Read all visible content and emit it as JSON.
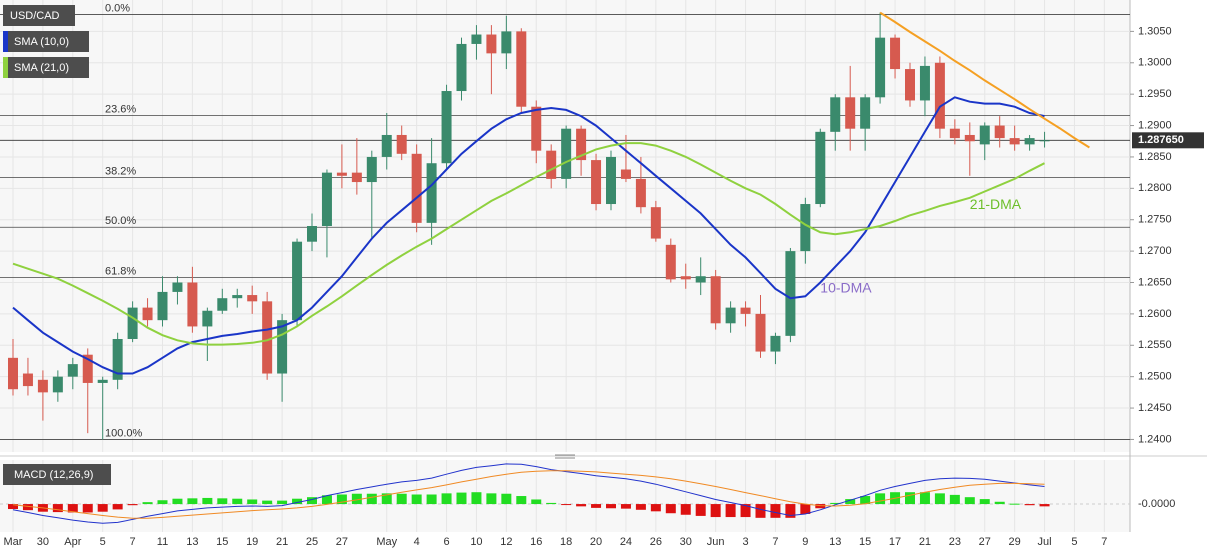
{
  "chart_data": {
    "type": "candlestick",
    "title": "USD/CAD",
    "categories": [
      "Mar",
      null,
      "30",
      null,
      "Apr",
      null,
      "5",
      null,
      "7",
      null,
      "11",
      null,
      "13",
      null,
      "15",
      null,
      "19",
      null,
      "21",
      null,
      "25",
      null,
      "27",
      null,
      null,
      "May",
      null,
      "4",
      null,
      "6",
      null,
      "10",
      null,
      "12",
      null,
      "16",
      null,
      "18",
      null,
      "20",
      null,
      "24",
      null,
      "26",
      null,
      "30",
      null,
      "Jun",
      null,
      "3",
      null,
      "7",
      null,
      "9",
      null,
      "13",
      null,
      "15",
      null,
      "17",
      null,
      "21",
      null,
      "23",
      null,
      "27",
      null,
      "29",
      null,
      "Jul",
      null,
      "5",
      null,
      "7"
    ],
    "ohlc": [
      [
        1.253,
        1.256,
        1.247,
        1.248
      ],
      [
        1.2505,
        1.253,
        1.247,
        1.2485
      ],
      [
        1.2495,
        1.251,
        1.243,
        1.2475
      ],
      [
        1.2475,
        1.251,
        1.246,
        1.25
      ],
      [
        1.25,
        1.253,
        1.248,
        1.252
      ],
      [
        1.2535,
        1.2545,
        1.241,
        1.249
      ],
      [
        1.249,
        1.25,
        1.24,
        1.2495
      ],
      [
        1.2495,
        1.257,
        1.248,
        1.256
      ],
      [
        1.256,
        1.262,
        1.2555,
        1.261
      ],
      [
        1.261,
        1.2625,
        1.258,
        1.259
      ],
      [
        1.259,
        1.266,
        1.258,
        1.2635
      ],
      [
        1.2635,
        1.266,
        1.2615,
        1.265
      ],
      [
        1.265,
        1.2675,
        1.257,
        1.258
      ],
      [
        1.258,
        1.261,
        1.2525,
        1.2605
      ],
      [
        1.2605,
        1.264,
        1.26,
        1.2625
      ],
      [
        1.2625,
        1.264,
        1.261,
        1.263
      ],
      [
        1.263,
        1.2645,
        1.26,
        1.262
      ],
      [
        1.262,
        1.2635,
        1.2495,
        1.2505
      ],
      [
        1.2505,
        1.26,
        1.246,
        1.259
      ],
      [
        1.259,
        1.272,
        1.258,
        1.2715
      ],
      [
        1.2715,
        1.276,
        1.27,
        1.274
      ],
      [
        1.274,
        1.283,
        1.269,
        1.2825
      ],
      [
        1.2825,
        1.287,
        1.28,
        1.282
      ],
      [
        1.2825,
        1.288,
        1.279,
        1.281
      ],
      [
        1.281,
        1.286,
        1.272,
        1.285
      ],
      [
        1.285,
        1.292,
        1.283,
        1.2885
      ],
      [
        1.2885,
        1.29,
        1.2845,
        1.2855
      ],
      [
        1.2855,
        1.287,
        1.273,
        1.2745
      ],
      [
        1.2745,
        1.288,
        1.271,
        1.284
      ],
      [
        1.284,
        1.2965,
        1.283,
        1.2955
      ],
      [
        1.2955,
        1.304,
        1.294,
        1.303
      ],
      [
        1.303,
        1.306,
        1.3005,
        1.3045
      ],
      [
        1.3045,
        1.306,
        1.295,
        1.3015
      ],
      [
        1.3015,
        1.3075,
        1.299,
        1.305
      ],
      [
        1.305,
        1.3055,
        1.292,
        1.293
      ],
      [
        1.293,
        1.294,
        1.284,
        1.286
      ],
      [
        1.286,
        1.287,
        1.28,
        1.2815
      ],
      [
        1.2815,
        1.29,
        1.28,
        1.2895
      ],
      [
        1.2895,
        1.29,
        1.282,
        1.2845
      ],
      [
        1.2845,
        1.2855,
        1.2765,
        1.2775
      ],
      [
        1.2775,
        1.286,
        1.2765,
        1.285
      ],
      [
        1.283,
        1.2885,
        1.281,
        1.2815
      ],
      [
        1.2815,
        1.285,
        1.276,
        1.277
      ],
      [
        1.277,
        1.278,
        1.2715,
        1.272
      ],
      [
        1.271,
        1.272,
        1.265,
        1.2655
      ],
      [
        1.266,
        1.268,
        1.264,
        1.2655
      ],
      [
        1.265,
        1.269,
        1.263,
        1.266
      ],
      [
        1.266,
        1.267,
        1.2575,
        1.2585
      ],
      [
        1.2585,
        1.262,
        1.257,
        1.261
      ],
      [
        1.261,
        1.262,
        1.258,
        1.26
      ],
      [
        1.26,
        1.263,
        1.253,
        1.254
      ],
      [
        1.254,
        1.257,
        1.252,
        1.2565
      ],
      [
        1.2565,
        1.2705,
        1.2555,
        1.27
      ],
      [
        1.27,
        1.2785,
        1.268,
        1.2775
      ],
      [
        1.2775,
        1.2895,
        1.277,
        1.289
      ],
      [
        1.289,
        1.295,
        1.286,
        1.2945
      ],
      [
        1.2945,
        1.2995,
        1.286,
        1.2895
      ],
      [
        1.2895,
        1.295,
        1.286,
        1.2945
      ],
      [
        1.2945,
        1.308,
        1.2935,
        1.304
      ],
      [
        1.304,
        1.3045,
        1.2975,
        1.299
      ],
      [
        1.299,
        1.3,
        1.293,
        1.294
      ],
      [
        1.294,
        1.301,
        1.2915,
        1.2995
      ],
      [
        1.3,
        1.301,
        1.288,
        1.2895
      ],
      [
        1.2895,
        1.291,
        1.287,
        1.288
      ],
      [
        1.2885,
        1.2905,
        1.282,
        1.2875
      ],
      [
        1.287,
        1.2905,
        1.2845,
        1.29
      ],
      [
        1.29,
        1.2915,
        1.2865,
        1.288
      ],
      [
        1.288,
        1.29,
        1.286,
        1.287
      ],
      [
        1.287,
        1.2885,
        1.286,
        1.288
      ],
      [
        1.2875,
        1.289,
        1.2865,
        1.28765
      ],
      null,
      null,
      null,
      null
    ],
    "up_color": "#3a8a6c",
    "down_color": "#d65a4f",
    "series": [
      {
        "name": "SMA (10,0)",
        "color": "#1a35c8",
        "values": [
          1.261,
          1.259,
          1.257,
          1.2555,
          1.254,
          1.2528,
          1.2515,
          1.2505,
          1.2505,
          1.2515,
          1.253,
          1.2545,
          1.2555,
          1.256,
          1.2565,
          1.2568,
          1.2572,
          1.2575,
          1.258,
          1.259,
          1.261,
          1.2635,
          1.266,
          1.269,
          1.272,
          1.2745,
          1.2765,
          1.2785,
          1.2805,
          1.283,
          1.2855,
          1.2875,
          1.2895,
          1.291,
          1.292,
          1.2925,
          1.2928,
          1.2925,
          1.2915,
          1.29,
          1.288,
          1.286,
          1.284,
          1.282,
          1.28,
          1.278,
          1.276,
          1.2735,
          1.271,
          1.269,
          1.2665,
          1.264,
          1.2625,
          1.2628,
          1.265,
          1.2675,
          1.27,
          1.273,
          1.277,
          1.281,
          1.285,
          1.289,
          1.293,
          1.2945,
          1.2938,
          1.2935,
          1.2935,
          1.293,
          1.292,
          1.2915,
          null,
          null,
          null,
          null
        ]
      },
      {
        "name": "SMA (21,0)",
        "color": "#8fd13f",
        "values": [
          1.268,
          1.2672,
          1.2664,
          1.2656,
          1.2645,
          1.2633,
          1.2621,
          1.2608,
          1.2594,
          1.2578,
          1.2566,
          1.2558,
          1.2553,
          1.2551,
          1.2551,
          1.2552,
          1.2554,
          1.2558,
          1.2567,
          1.258,
          1.2597,
          1.2612,
          1.2628,
          1.2645,
          1.2662,
          1.2678,
          1.2693,
          1.2707,
          1.272,
          1.2735,
          1.275,
          1.2765,
          1.278,
          1.2792,
          1.2805,
          1.2818,
          1.283,
          1.2842,
          1.2852,
          1.2862,
          1.2868,
          1.2872,
          1.2872,
          1.2868,
          1.286,
          1.285,
          1.2838,
          1.2825,
          1.2812,
          1.28,
          1.279,
          1.2775,
          1.2758,
          1.2742,
          1.273,
          1.2727,
          1.273,
          1.2735,
          1.274,
          1.2748,
          1.2757,
          1.2764,
          1.2772,
          1.2778,
          1.2785,
          1.2795,
          1.2805,
          1.2815,
          1.2828,
          1.284,
          null,
          null,
          null,
          null
        ]
      }
    ],
    "annotations": [
      {
        "text": "10-DMA",
        "color": "#8a6cc8"
      },
      {
        "text": "21-DMA",
        "color": "#6cbf2a"
      }
    ],
    "trendline": {
      "color": "#f5a023",
      "values": [
        null,
        null,
        null,
        null,
        null,
        null,
        null,
        null,
        null,
        null,
        null,
        null,
        null,
        null,
        null,
        null,
        null,
        null,
        null,
        null,
        null,
        null,
        null,
        null,
        null,
        null,
        null,
        null,
        null,
        null,
        null,
        null,
        null,
        null,
        null,
        null,
        null,
        null,
        null,
        null,
        null,
        null,
        null,
        null,
        null,
        null,
        null,
        null,
        null,
        null,
        null,
        null,
        null,
        null,
        null,
        null,
        null,
        null,
        1.308,
        1.3065,
        1.3049,
        1.3034,
        1.3019,
        1.3003,
        1.2988,
        1.2972,
        1.2957,
        1.2942,
        1.2926,
        1.2911,
        1.2896,
        1.288,
        1.2865,
        null
      ]
    },
    "fib_levels": [
      {
        "label": "0.0%",
        "value": 1.3077
      },
      {
        "label": "23.6%",
        "value": 1.2916
      },
      {
        "label": "38.2%",
        "value": 1.2817
      },
      {
        "label": "50.0%",
        "value": 1.2738
      },
      {
        "label": "61.8%",
        "value": 1.2658
      },
      {
        "label": "100.0%",
        "value": 1.24
      }
    ],
    "last_price": 1.28765,
    "last_price_label": "1.287650",
    "ylim": [
      1.238,
      1.31
    ],
    "yticks": [
      {
        "value": 1.24,
        "label": "1.2400"
      },
      {
        "value": 1.245,
        "label": "1.2450"
      },
      {
        "value": 1.25,
        "label": "1.2500"
      },
      {
        "value": 1.255,
        "label": "1.2550"
      },
      {
        "value": 1.26,
        "label": "1.2600"
      },
      {
        "value": 1.265,
        "label": "1.2650"
      },
      {
        "value": 1.27,
        "label": "1.2700"
      },
      {
        "value": 1.275,
        "label": "1.2750"
      },
      {
        "value": 1.28,
        "label": "1.2800"
      },
      {
        "value": 1.285,
        "label": "1.2850"
      },
      {
        "value": 1.29,
        "label": "1.2900"
      },
      {
        "value": 1.295,
        "label": "1.2950"
      },
      {
        "value": 1.3,
        "label": "1.3000"
      },
      {
        "value": 1.305,
        "label": "1.3050"
      }
    ],
    "grid": true,
    "macd": {
      "title": "MACD (12,26,9)",
      "ylim": [
        -0.006,
        0.011
      ],
      "yticks": [
        {
          "value": 0,
          "label": "-0.0000"
        }
      ],
      "hist_colors": [
        "#22dd22",
        "#dd1111"
      ],
      "hist_values": [
        -0.0013,
        -0.0016,
        -0.002,
        -0.0021,
        -0.0022,
        -0.0022,
        -0.002,
        -0.0014,
        -0.0003,
        0.0005,
        0.001,
        0.0014,
        0.0015,
        0.0016,
        0.0015,
        0.0014,
        0.0012,
        0.0009,
        0.0009,
        0.0014,
        0.0018,
        0.0023,
        0.0025,
        0.0027,
        0.0027,
        0.0028,
        0.0027,
        0.0025,
        0.0025,
        0.0028,
        0.003,
        0.0031,
        0.0028,
        0.0027,
        0.0021,
        0.0012,
        0.0003,
        -0.0002,
        -0.0006,
        -0.001,
        -0.0011,
        -0.0012,
        -0.0015,
        -0.0019,
        -0.0024,
        -0.0028,
        -0.0031,
        -0.0034,
        -0.0034,
        -0.0034,
        -0.0036,
        -0.0036,
        -0.0036,
        -0.0026,
        -0.0011,
        0.0003,
        0.0013,
        0.0021,
        0.0028,
        0.0031,
        0.0031,
        0.0031,
        0.0028,
        0.0024,
        0.0018,
        0.0013,
        0.0006,
        0.0001,
        -0.0003,
        -0.0006,
        null,
        null,
        null,
        null
      ],
      "macd_line": {
        "color": "#2233cc",
        "values": [
          -0.0015,
          -0.0022,
          -0.003,
          -0.0036,
          -0.0042,
          -0.0047,
          -0.005,
          -0.0048,
          -0.004,
          -0.0032,
          -0.0025,
          -0.0018,
          -0.0014,
          -0.001,
          -0.0008,
          -0.0006,
          -0.0005,
          -0.0006,
          -0.0004,
          0.0004,
          0.0012,
          0.0022,
          0.003,
          0.0038,
          0.0045,
          0.0052,
          0.0058,
          0.0062,
          0.0068,
          0.0078,
          0.0088,
          0.0096,
          0.01,
          0.0105,
          0.0104,
          0.0098,
          0.009,
          0.0085,
          0.008,
          0.0074,
          0.007,
          0.0066,
          0.006,
          0.0052,
          0.0042,
          0.0032,
          0.0022,
          0.0012,
          0.0004,
          -0.0004,
          -0.0014,
          -0.0022,
          -0.003,
          -0.0026,
          -0.0015,
          -0.0002,
          0.001,
          0.0022,
          0.0036,
          0.0046,
          0.0054,
          0.0062,
          0.0066,
          0.0068,
          0.0067,
          0.0065,
          0.006,
          0.0055,
          0.005,
          0.0046,
          null,
          null,
          null,
          null
        ]
      },
      "signal_line": {
        "color": "#f08a24",
        "values": [
          -0.0002,
          -0.0006,
          -0.001,
          -0.0015,
          -0.002,
          -0.0025,
          -0.003,
          -0.0034,
          -0.0037,
          -0.0037,
          -0.0035,
          -0.0032,
          -0.0029,
          -0.0026,
          -0.0023,
          -0.002,
          -0.0017,
          -0.0015,
          -0.0013,
          -0.001,
          -0.0006,
          -0.0001,
          0.0005,
          0.0011,
          0.0018,
          0.0024,
          0.0031,
          0.0037,
          0.0043,
          0.005,
          0.0058,
          0.0065,
          0.0072,
          0.0078,
          0.0083,
          0.0086,
          0.0087,
          0.0087,
          0.0086,
          0.0084,
          0.0081,
          0.0078,
          0.0075,
          0.0071,
          0.0066,
          0.006,
          0.0053,
          0.0046,
          0.0038,
          0.003,
          0.0022,
          0.0014,
          0.0006,
          0.0,
          -0.0004,
          -0.0005,
          -0.0003,
          0.0001,
          0.0008,
          0.0015,
          0.0023,
          0.0031,
          0.0038,
          0.0044,
          0.0049,
          0.0052,
          0.0054,
          0.0054,
          0.0053,
          0.0052,
          null,
          null,
          null,
          null
        ]
      }
    }
  }
}
